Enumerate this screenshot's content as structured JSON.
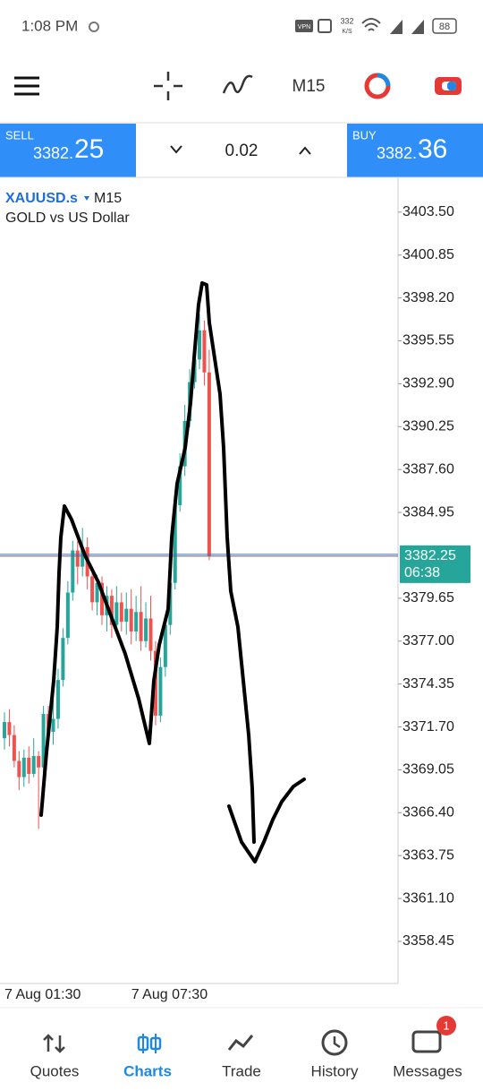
{
  "status_bar": {
    "time": "1:08 PM",
    "vpn": "VPN",
    "speed_value": "332",
    "speed_unit": "K/S",
    "battery": "88"
  },
  "toolbar": {
    "timeframe": "M15"
  },
  "trade_bar": {
    "sell_label": "SELL",
    "sell_price_main": "3382.",
    "sell_price_pips": "25",
    "volume": "0.02",
    "buy_label": "BUY",
    "buy_price_main": "3382.",
    "buy_price_pips": "36"
  },
  "chart_data": {
    "type": "candlestick",
    "symbol": "XAUUSD.s",
    "timeframe": "M15",
    "description": "GOLD vs US Dollar",
    "categories": [
      "7 Aug 01:30",
      null,
      null,
      null,
      null,
      null,
      null,
      null,
      null,
      null,
      null,
      null,
      null,
      null,
      null,
      null,
      null,
      null,
      null,
      null,
      null,
      null,
      null,
      null,
      null,
      null,
      "7 Aug 07:30",
      null,
      null,
      null,
      null,
      null,
      null,
      null,
      null,
      null,
      null,
      null,
      null,
      null,
      null,
      null,
      null
    ],
    "open": [
      3371.0,
      3372.0,
      3371.2,
      3369.6,
      3368.6,
      3369.8,
      3368.8,
      3369.9,
      3369.2,
      3372.5,
      3371.4,
      3372.2,
      3374.6,
      3377.2,
      3380.0,
      3382.6,
      3381.6,
      3382.8,
      3381.0,
      3379.4,
      3380.6,
      3378.6,
      3379.8,
      3378.0,
      3379.4,
      3378.2,
      3379.0,
      3377.6,
      3378.8,
      3377.0,
      3378.4,
      3376.4,
      3372.4,
      3375.4,
      3378.0,
      3380.6,
      3385.4,
      3387.8,
      3390.6,
      3393.0,
      3394.4,
      3396.2,
      3393.6
    ],
    "high": [
      3372.6,
      3372.8,
      3371.8,
      3370.2,
      3370.3,
      3370.5,
      3371.0,
      3370.2,
      3373.0,
      3373.0,
      3374.7,
      3375.3,
      3377.8,
      3380.7,
      3383.2,
      3383.2,
      3384.0,
      3383.4,
      3381.5,
      3381.1,
      3381.0,
      3380.4,
      3380.2,
      3380.4,
      3380.0,
      3380.0,
      3380.2,
      3379.8,
      3380.4,
      3379.4,
      3379.8,
      3377.0,
      3376.0,
      3378.6,
      3381.0,
      3386.0,
      3388.6,
      3391.6,
      3393.8,
      3395.8,
      3397.2,
      3396.8,
      3395.0
    ],
    "low": [
      3370.3,
      3370.5,
      3369.2,
      3367.8,
      3368.0,
      3368.2,
      3368.6,
      3365.4,
      3368.9,
      3370.8,
      3370.6,
      3371.6,
      3374.2,
      3376.8,
      3379.5,
      3380.5,
      3381.0,
      3380.2,
      3378.9,
      3378.6,
      3378.0,
      3377.6,
      3377.2,
      3377.6,
      3377.6,
      3377.4,
      3376.8,
      3377.0,
      3376.4,
      3376.6,
      3375.8,
      3371.8,
      3372.0,
      3374.8,
      3377.4,
      3380.2,
      3385.0,
      3387.2,
      3390.2,
      3392.6,
      3393.8,
      3392.8,
      3382.0
    ],
    "close": [
      3372.0,
      3371.2,
      3369.6,
      3368.6,
      3369.8,
      3368.8,
      3369.9,
      3369.2,
      3372.5,
      3371.4,
      3372.2,
      3374.6,
      3377.2,
      3380.0,
      3382.6,
      3381.6,
      3382.8,
      3381.0,
      3379.4,
      3380.6,
      3378.6,
      3379.8,
      3378.0,
      3379.4,
      3378.2,
      3379.0,
      3377.6,
      3378.8,
      3377.0,
      3378.4,
      3376.4,
      3372.4,
      3375.4,
      3378.0,
      3380.6,
      3385.4,
      3387.8,
      3390.6,
      3393.0,
      3394.4,
      3396.2,
      3393.6,
      3382.25
    ],
    "up_color": "#26a69a",
    "down_color": "#ef5350",
    "bid_line": 3382.25,
    "ask_line": 3382.36,
    "countdown": "06:38",
    "ylim": [
      3355.85,
      3405.65
    ],
    "yticks": [
      {
        "value": 3403.5,
        "label": "3403.50"
      },
      3400.85,
      {
        "value": 3398.2,
        "label": "3398.20"
      },
      3395.55,
      {
        "value": 3392.9,
        "label": "3392.90"
      },
      3390.25,
      {
        "value": 3387.6,
        "label": "3387.60"
      },
      3384.95,
      3379.65,
      {
        "value": 3377.0,
        "label": "3377.00"
      },
      3374.35,
      {
        "value": 3371.7,
        "label": "3371.70"
      },
      3369.05,
      {
        "value": 3366.4,
        "label": "3366.40"
      },
      3363.75,
      {
        "value": 3361.1,
        "label": "3361.10"
      },
      3358.45
    ],
    "grid": false
  },
  "nav": {
    "items": [
      {
        "label": "Quotes"
      },
      {
        "label": "Charts"
      },
      {
        "label": "Trade"
      },
      {
        "label": "History"
      },
      {
        "label": "Messages"
      }
    ],
    "badge": "1"
  }
}
